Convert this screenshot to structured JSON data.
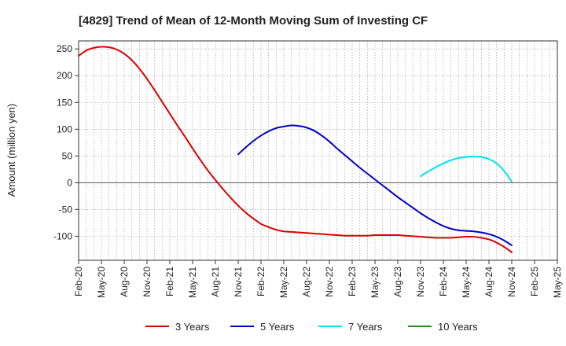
{
  "chart_data": {
    "type": "line",
    "title": "[4829]  Trend of Mean of 12-Month Moving Sum of Investing CF",
    "xlabel": "",
    "ylabel": "Amount (million yen)",
    "ylim": [
      -145,
      265
    ],
    "yticks": [
      250,
      200,
      150,
      100,
      50,
      0,
      -50,
      -100
    ],
    "grid": true,
    "legend_position": "bottom",
    "x_tick_labels": [
      "Feb-20",
      "May-20",
      "Aug-20",
      "Nov-20",
      "Feb-21",
      "May-21",
      "Aug-21",
      "Nov-21",
      "Feb-22",
      "May-22",
      "Aug-22",
      "Nov-22",
      "Feb-23",
      "May-23",
      "Aug-23",
      "Nov-23",
      "Feb-24",
      "May-24",
      "Aug-24",
      "Nov-24",
      "Feb-25",
      "May-25"
    ],
    "x_months": [
      "2020-02",
      "2020-03",
      "2020-04",
      "2020-05",
      "2020-06",
      "2020-07",
      "2020-08",
      "2020-09",
      "2020-10",
      "2020-11",
      "2020-12",
      "2021-01",
      "2021-02",
      "2021-03",
      "2021-04",
      "2021-05",
      "2021-06",
      "2021-07",
      "2021-08",
      "2021-09",
      "2021-10",
      "2021-11",
      "2021-12",
      "2022-01",
      "2022-02",
      "2022-03",
      "2022-04",
      "2022-05",
      "2022-06",
      "2022-07",
      "2022-08",
      "2022-09",
      "2022-10",
      "2022-11",
      "2022-12",
      "2023-01",
      "2023-02",
      "2023-03",
      "2023-04",
      "2023-05",
      "2023-06",
      "2023-07",
      "2023-08",
      "2023-09",
      "2023-10",
      "2023-11",
      "2023-12",
      "2024-01",
      "2024-02",
      "2024-03",
      "2024-04",
      "2024-05",
      "2024-06",
      "2024-07",
      "2024-08",
      "2024-09",
      "2024-10",
      "2024-11"
    ],
    "series": [
      {
        "name": "3 Years",
        "color": "#dd0000",
        "values": [
          237,
          247,
          252,
          254,
          253,
          249,
          241,
          229,
          213,
          194,
          173,
          151,
          129,
          107,
          86,
          64,
          43,
          23,
          5,
          -12,
          -28,
          -43,
          -56,
          -67,
          -77,
          -83,
          -88,
          -91,
          -92,
          -93,
          -94,
          -95,
          -96,
          -97,
          -98,
          -99,
          -99,
          -99,
          -99,
          -98,
          -98,
          -98,
          -98,
          -99,
          -100,
          -101,
          -102,
          -103,
          -103,
          -103,
          -102,
          -101,
          -101,
          -103,
          -106,
          -112,
          -120,
          -130
        ]
      },
      {
        "name": "5 Years",
        "color": "#0000cc",
        "values": [
          null,
          null,
          null,
          null,
          null,
          null,
          null,
          null,
          null,
          null,
          null,
          null,
          null,
          null,
          null,
          null,
          null,
          null,
          null,
          null,
          null,
          53,
          66,
          78,
          88,
          96,
          102,
          105,
          107,
          106,
          103,
          97,
          88,
          77,
          64,
          52,
          40,
          28,
          17,
          6,
          -5,
          -16,
          -27,
          -37,
          -47,
          -57,
          -66,
          -74,
          -81,
          -86,
          -89,
          -90,
          -91,
          -93,
          -96,
          -101,
          -108,
          -117
        ]
      },
      {
        "name": "7 Years",
        "color": "#00e5ee",
        "values": [
          null,
          null,
          null,
          null,
          null,
          null,
          null,
          null,
          null,
          null,
          null,
          null,
          null,
          null,
          null,
          null,
          null,
          null,
          null,
          null,
          null,
          null,
          null,
          null,
          null,
          null,
          null,
          null,
          null,
          null,
          null,
          null,
          null,
          null,
          null,
          null,
          null,
          null,
          null,
          null,
          null,
          null,
          null,
          null,
          null,
          12,
          21,
          29,
          36,
          42,
          46,
          48,
          49,
          48,
          44,
          36,
          22,
          2
        ]
      },
      {
        "name": "10 Years",
        "color": "#228b22",
        "values": []
      }
    ]
  }
}
